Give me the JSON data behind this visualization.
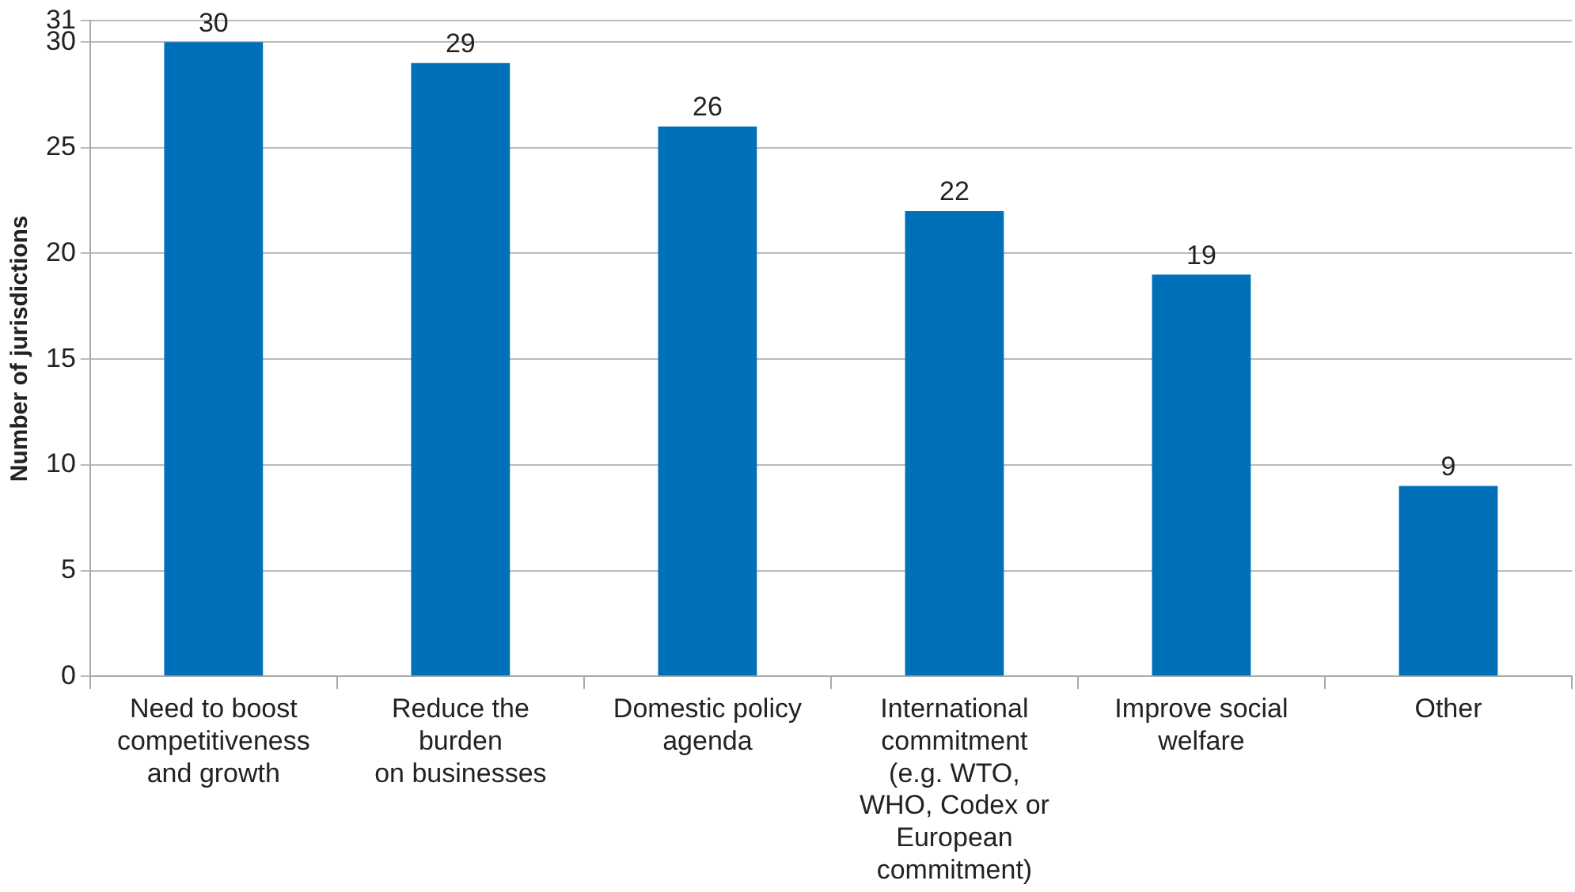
{
  "chart_data": {
    "type": "bar",
    "ylabel": "Number of jurisdictions",
    "categories": [
      "Need to boost\ncompetitiveness\nand growth",
      "Reduce the\nburden\non businesses",
      "Domestic policy\nagenda",
      "International\ncommitment\n(e.g. WTO,\nWHO, Codex or\nEuropean\ncommitment)",
      "Improve social\nwelfare",
      "Other"
    ],
    "values": [
      30,
      29,
      26,
      22,
      19,
      9
    ],
    "color": "#0070b8",
    "ylim": [
      0,
      31
    ],
    "yticks": [
      0,
      5,
      10,
      15,
      20,
      25,
      30,
      31
    ],
    "grid": "y",
    "data_labels": true,
    "legend": false
  }
}
